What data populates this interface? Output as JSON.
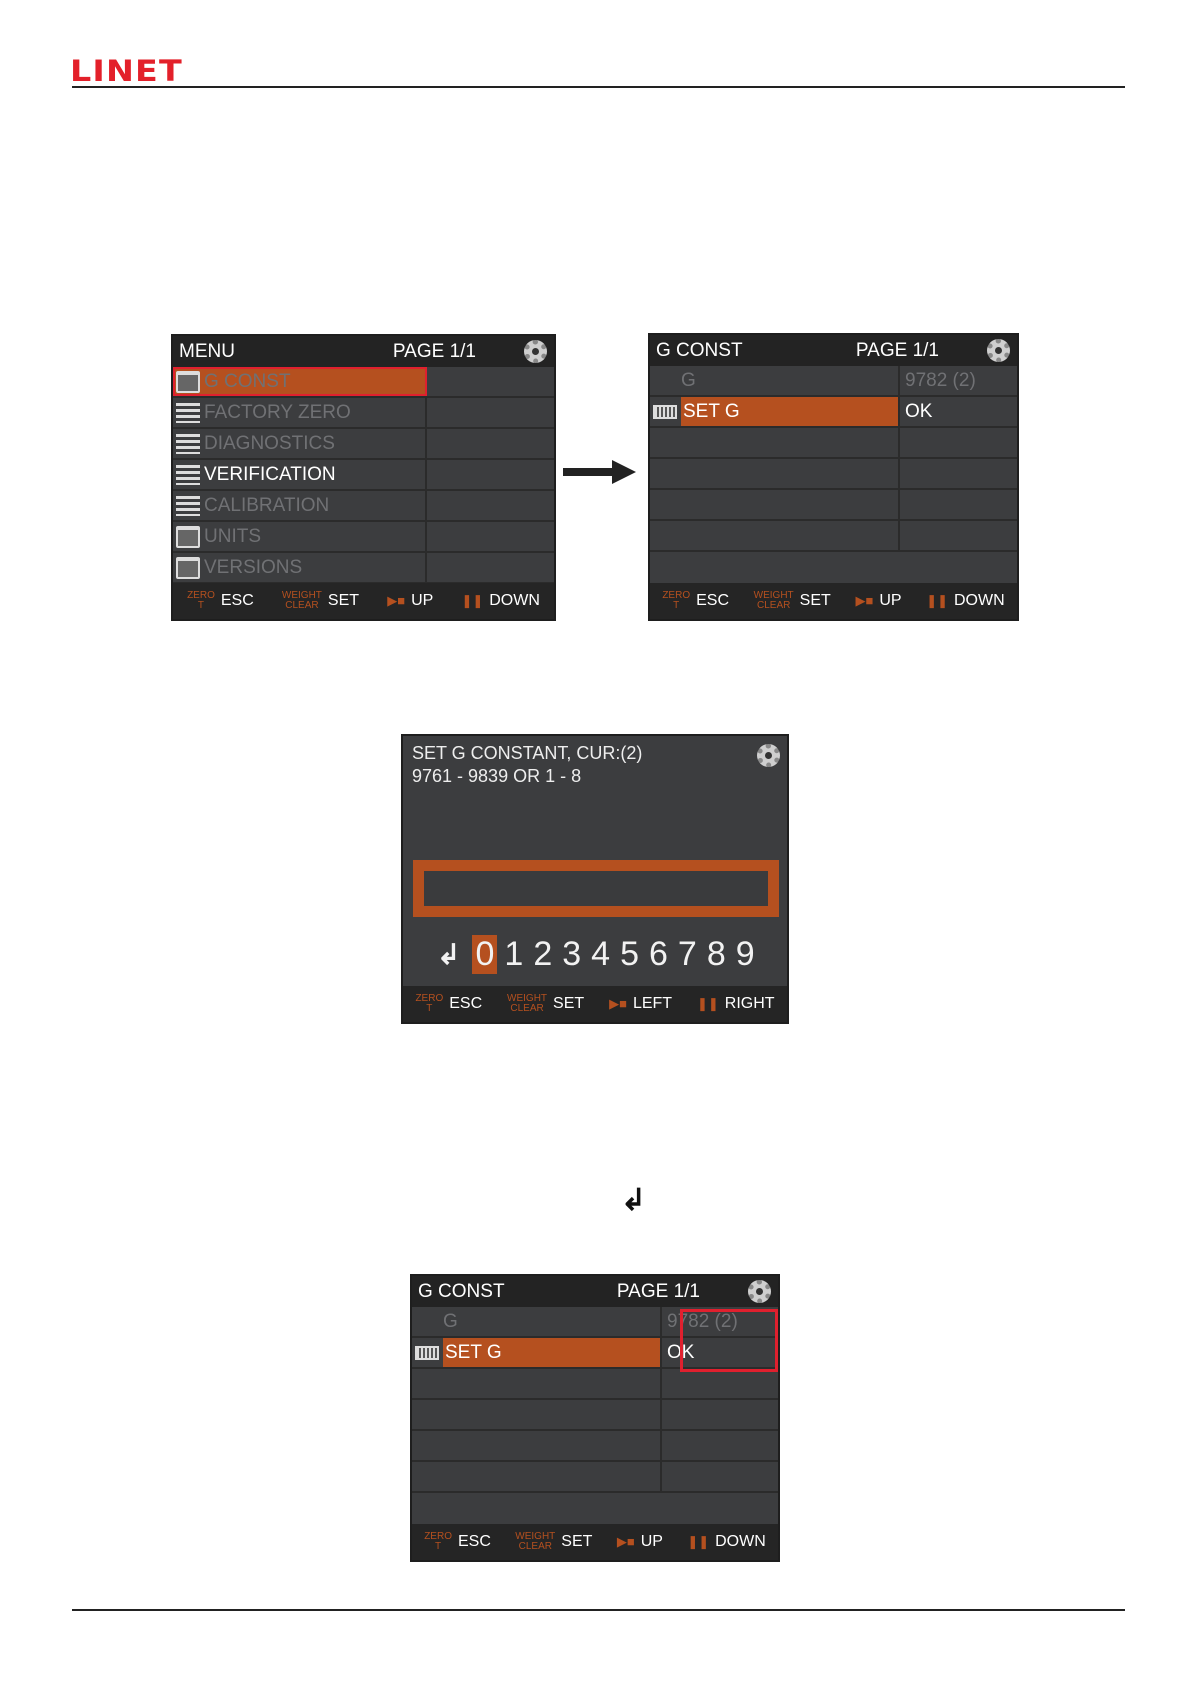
{
  "brand": {
    "logo": "LINET",
    "color": "#e3202a"
  },
  "colors": {
    "accent": "#b5501f",
    "highlight_border": "#e0202e",
    "panel_bg": "#3c3d3f"
  },
  "footer_std": {
    "zero": "ZERO",
    "t": "T",
    "esc": "ESC",
    "weight": "WEIGHT",
    "clear": "CLEAR",
    "set": "SET",
    "up": "UP",
    "down": "DOWN",
    "play_icon": "play-stop-icon",
    "pause_icon": "pause-icon"
  },
  "footer_edit": {
    "left": "LEFT",
    "right": "RIGHT"
  },
  "menu_screen": {
    "title": "MENU",
    "page": "PAGE 1/1",
    "items": [
      {
        "label": "G CONST",
        "icon": "folder",
        "state": "selected"
      },
      {
        "label": "FACTORY ZERO",
        "icon": "list",
        "state": "disabled"
      },
      {
        "label": "DIAGNOSTICS",
        "icon": "list",
        "state": "disabled"
      },
      {
        "label": "VERIFICATION",
        "icon": "list",
        "state": "enabled"
      },
      {
        "label": "CALIBRATION",
        "icon": "list",
        "state": "disabled"
      },
      {
        "label": "UNITS",
        "icon": "folder",
        "state": "disabled"
      },
      {
        "label": "VERSIONS",
        "icon": "folder",
        "state": "disabled"
      }
    ]
  },
  "gconst_screen": {
    "title": "G CONST",
    "page": "PAGE 1/1",
    "rows": [
      {
        "label": "G",
        "value": "9782 (2)",
        "state": "disabled"
      },
      {
        "label": "SET G",
        "value": "OK",
        "icon": "keyboard",
        "state": "selected"
      }
    ]
  },
  "set_screen": {
    "line1": "SET G CONSTANT, CUR:(2)",
    "line2": "9761 - 9839 OR 1 - 8",
    "input_value": "",
    "enter_symbol": "↲",
    "digits": [
      "0",
      "1",
      "2",
      "3",
      "4",
      "5",
      "6",
      "7",
      "8",
      "9"
    ],
    "selected_digit": "0"
  },
  "enter_key": "↲"
}
